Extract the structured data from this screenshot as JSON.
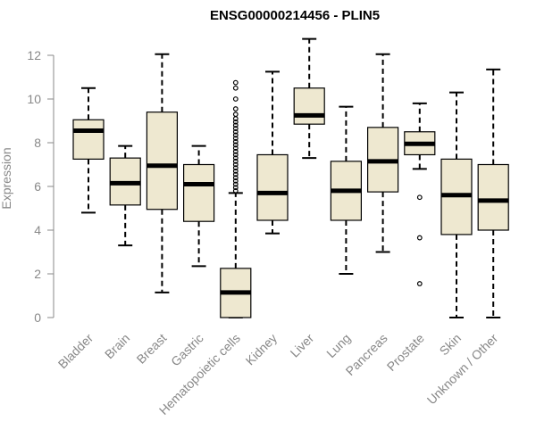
{
  "chart_data": {
    "type": "boxplot",
    "title": "ENSG00000214456 - PLIN5",
    "xlabel": "",
    "ylabel": "Expression",
    "ylim": [
      0,
      12.5
    ],
    "yticks": [
      0,
      2,
      4,
      6,
      8,
      10,
      12
    ],
    "box_color": "#EEE8D0",
    "line_color": "#000000",
    "axis_color": "#888888",
    "categories": [
      "Bladder",
      "Brain",
      "Breast",
      "Gastric",
      "Hematopoietic cells",
      "Kidney",
      "Liver",
      "Lung",
      "Pancreas",
      "Prostate",
      "Skin",
      "Unknown / Other"
    ],
    "boxes": [
      {
        "whisker_low": 4.8,
        "q1": 7.25,
        "median": 8.55,
        "q3": 9.05,
        "whisker_high": 10.5,
        "outliers": []
      },
      {
        "whisker_low": 3.3,
        "q1": 5.15,
        "median": 6.15,
        "q3": 7.3,
        "whisker_high": 7.85,
        "outliers": []
      },
      {
        "whisker_low": 1.15,
        "q1": 4.95,
        "median": 6.95,
        "q3": 9.4,
        "whisker_high": 12.05,
        "outliers": []
      },
      {
        "whisker_low": 2.35,
        "q1": 4.4,
        "median": 6.1,
        "q3": 7.0,
        "whisker_high": 7.85,
        "outliers": []
      },
      {
        "whisker_low": 0.0,
        "q1": 0.0,
        "median": 1.15,
        "q3": 2.25,
        "whisker_high": 5.7,
        "outliers": [
          5.8,
          5.95,
          6.1,
          6.25,
          6.4,
          6.55,
          6.7,
          6.85,
          7.0,
          7.15,
          7.3,
          7.45,
          7.6,
          7.75,
          7.9,
          8.05,
          8.2,
          8.35,
          8.5,
          8.65,
          8.8,
          8.95,
          9.1,
          9.3,
          9.55,
          10.0,
          10.5,
          10.75
        ]
      },
      {
        "whisker_low": 3.85,
        "q1": 4.45,
        "median": 5.7,
        "q3": 7.45,
        "whisker_high": 11.25,
        "outliers": []
      },
      {
        "whisker_low": 7.3,
        "q1": 8.85,
        "median": 9.25,
        "q3": 10.5,
        "whisker_high": 12.75,
        "outliers": []
      },
      {
        "whisker_low": 2.0,
        "q1": 4.45,
        "median": 5.8,
        "q3": 7.15,
        "whisker_high": 9.65,
        "outliers": []
      },
      {
        "whisker_low": 3.0,
        "q1": 5.75,
        "median": 7.15,
        "q3": 8.7,
        "whisker_high": 12.05,
        "outliers": []
      },
      {
        "whisker_low": 6.8,
        "q1": 7.45,
        "median": 7.95,
        "q3": 8.5,
        "whisker_high": 9.8,
        "outliers": [
          5.5,
          3.65,
          1.55
        ]
      },
      {
        "whisker_low": 0.0,
        "q1": 3.8,
        "median": 5.6,
        "q3": 7.25,
        "whisker_high": 10.3,
        "outliers": []
      },
      {
        "whisker_low": 0.0,
        "q1": 4.0,
        "median": 5.35,
        "q3": 7.0,
        "whisker_high": 11.35,
        "outliers": []
      }
    ]
  }
}
